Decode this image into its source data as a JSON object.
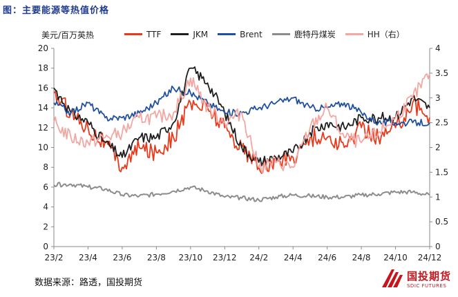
{
  "figure_title": "图：主要能源等热值价格",
  "source_text": "数据来源：路透，国投期货",
  "logo": {
    "cn": "国投期货",
    "en": "SDIC FUTURES"
  },
  "colors": {
    "ttf": "#e8391b",
    "jkm": "#1e1e1e",
    "brent": "#1f4fa0",
    "coal": "#8c8c8c",
    "hh": "#f2a7a3",
    "title": "#1f3b8f",
    "logo": "#c4161c"
  },
  "chart_data": {
    "type": "line",
    "unit_label": "美元/百万英热",
    "x_ticks": [
      "23/2",
      "23/4",
      "23/6",
      "23/8",
      "23/10",
      "23/12",
      "24/2",
      "24/4",
      "24/6",
      "24/8",
      "24/10",
      "24/12"
    ],
    "y_left": {
      "min": 0,
      "max": 20,
      "ticks": [
        0,
        2,
        4,
        6,
        8,
        10,
        12,
        14,
        16,
        18,
        20
      ]
    },
    "y_right": {
      "min": 0,
      "max": 4,
      "ticks": [
        "0",
        "0.5",
        "1",
        "1.5",
        "2",
        "2.5",
        "3",
        "3.5",
        "4"
      ]
    },
    "legend_position": "top",
    "grid": false,
    "series": [
      {
        "name": "TTF",
        "key": "ttf",
        "axis": "left",
        "x": [
          "23/2",
          "23/3",
          "23/4",
          "23/5",
          "23/6",
          "23/7",
          "23/8",
          "23/9",
          "23/10",
          "23/11",
          "23/12",
          "24/1",
          "24/2",
          "24/3",
          "24/4",
          "24/5",
          "24/6",
          "24/7",
          "24/8",
          "24/9",
          "24/10",
          "24/11",
          "24/12"
        ],
        "values": [
          15.5,
          13.5,
          12.0,
          10.5,
          8.0,
          10.0,
          9.5,
          11.0,
          14.5,
          14.0,
          12.0,
          10.0,
          8.0,
          8.5,
          9.0,
          11.0,
          11.0,
          10.0,
          12.0,
          11.0,
          12.0,
          14.5,
          13.0
        ]
      },
      {
        "name": "JKM",
        "key": "jkm",
        "axis": "left",
        "x": [
          "23/2",
          "23/3",
          "23/4",
          "23/5",
          "23/6",
          "23/7",
          "23/8",
          "23/9",
          "23/10",
          "23/11",
          "23/12",
          "24/1",
          "24/2",
          "24/3",
          "24/4",
          "24/5",
          "24/6",
          "24/7",
          "24/8",
          "24/9",
          "24/10",
          "24/11",
          "24/12"
        ],
        "values": [
          16.0,
          13.5,
          12.5,
          10.5,
          9.0,
          11.0,
          11.0,
          12.5,
          18.0,
          16.5,
          13.5,
          10.0,
          8.5,
          9.0,
          9.5,
          11.5,
          12.5,
          12.0,
          13.0,
          13.0,
          13.0,
          15.0,
          14.0
        ]
      },
      {
        "name": "Brent",
        "key": "brent",
        "axis": "left",
        "x": [
          "23/2",
          "23/3",
          "23/4",
          "23/5",
          "23/6",
          "23/7",
          "23/8",
          "23/9",
          "23/10",
          "23/11",
          "23/12",
          "24/1",
          "24/2",
          "24/3",
          "24/4",
          "24/5",
          "24/6",
          "24/7",
          "24/8",
          "24/9",
          "24/10",
          "24/11",
          "24/12"
        ],
        "values": [
          14.5,
          13.5,
          14.5,
          13.0,
          13.0,
          13.5,
          14.5,
          16.0,
          15.5,
          14.5,
          13.5,
          13.5,
          14.0,
          14.5,
          15.0,
          14.0,
          14.0,
          14.5,
          13.5,
          12.5,
          12.5,
          12.5,
          12.5
        ]
      },
      {
        "name": "鹿特丹煤炭",
        "key": "coal",
        "axis": "left",
        "x": [
          "23/2",
          "23/3",
          "23/4",
          "23/5",
          "23/6",
          "23/7",
          "23/8",
          "23/9",
          "23/10",
          "23/11",
          "23/12",
          "24/1",
          "24/2",
          "24/3",
          "24/4",
          "24/5",
          "24/6",
          "24/7",
          "24/8",
          "24/9",
          "24/10",
          "24/11",
          "24/12"
        ],
        "values": [
          6.2,
          6.3,
          6.0,
          5.8,
          5.2,
          5.1,
          5.3,
          5.6,
          6.0,
          5.6,
          5.0,
          4.9,
          4.7,
          5.0,
          5.2,
          5.1,
          5.0,
          5.0,
          5.2,
          5.3,
          5.5,
          5.5,
          5.2
        ]
      },
      {
        "name": "HH（右）",
        "key": "hh",
        "axis": "right",
        "x": [
          "23/2",
          "23/3",
          "23/4",
          "23/5",
          "23/6",
          "23/7",
          "23/8",
          "23/9",
          "23/10",
          "23/11",
          "23/12",
          "24/1",
          "24/2",
          "24/3",
          "24/4",
          "24/5",
          "24/6",
          "24/7",
          "24/8",
          "24/9",
          "24/10",
          "24/11",
          "24/12"
        ],
        "values": [
          2.5,
          2.2,
          2.1,
          2.2,
          2.3,
          2.6,
          2.6,
          2.7,
          3.4,
          2.8,
          2.5,
          2.7,
          1.6,
          1.7,
          1.6,
          2.4,
          2.8,
          2.2,
          2.1,
          2.3,
          2.6,
          3.0,
          3.5
        ]
      }
    ]
  }
}
